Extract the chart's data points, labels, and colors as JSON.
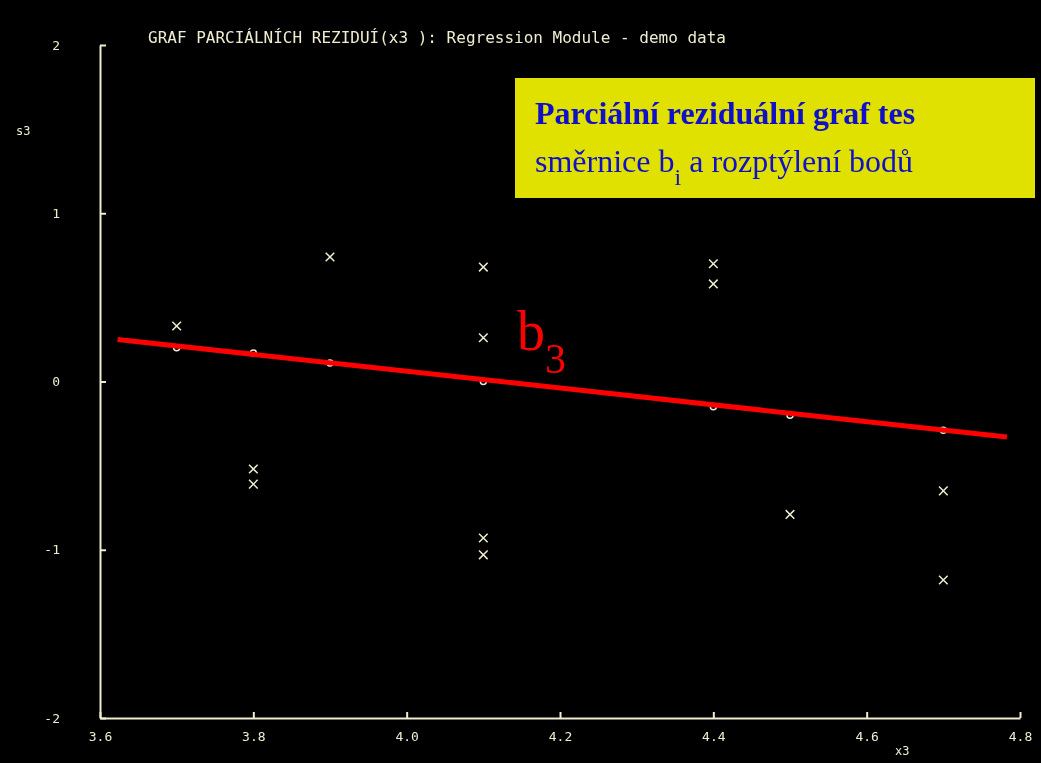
{
  "chart_data": {
    "type": "scatter",
    "title": "GRAF PARCIÁLNÍCH REZIDUÍ(x3 ): Regression Module - demo data",
    "xlabel": "x3",
    "ylabel": "s3",
    "xlim": [
      3.6,
      4.8
    ],
    "xticks": [
      3.6,
      3.8,
      {
        "value": 4.0,
        "label": "4.0"
      },
      4.2,
      4.4,
      4.6,
      4.8
    ],
    "ylim": [
      -2,
      2
    ],
    "yticks": [
      -2,
      -1,
      0,
      1,
      2
    ],
    "grid": false,
    "series": [
      {
        "marker": "cross",
        "color": "#f0ecd0",
        "x": [
          3.7,
          3.8,
          3.8,
          3.9,
          4.1,
          4.1,
          4.1,
          4.1,
          4.4,
          4.4,
          4.5,
          4.7,
          4.7
        ],
        "values": [
          0.33,
          -0.52,
          -0.61,
          0.74,
          0.68,
          0.26,
          -0.93,
          -1.03,
          0.7,
          0.58,
          -0.79,
          -0.65,
          -1.18
        ]
      },
      {
        "marker": "circle",
        "color": "#f0ecd0",
        "x": [
          3.7,
          3.8,
          3.9,
          4.1,
          4.4,
          4.5,
          4.7
        ],
        "values": [
          0.2,
          0.17,
          0.11,
          0.0,
          -0.15,
          -0.2,
          -0.29
        ]
      },
      {
        "type": "line",
        "color": "#ff0000",
        "x": [
          3.623,
          4.783
        ],
        "values": [
          0.25,
          -0.33
        ]
      }
    ],
    "annotations": [
      "b$_{3}$",
      "Parciální reziduální graf tes\nsměrnice b$_{i}$ a rozptýlení bodů"
    ]
  }
}
